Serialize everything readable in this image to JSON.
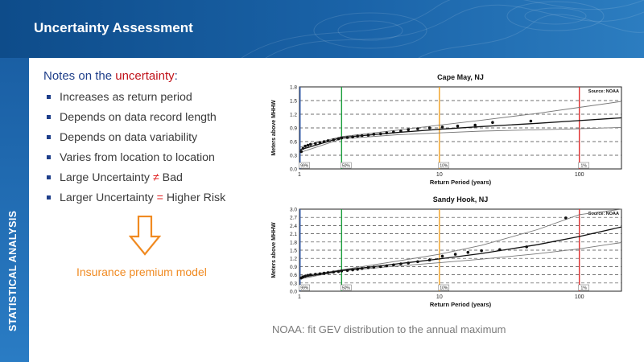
{
  "title": "Uncertainty Assessment",
  "sidebar": {
    "label": "STATISTICAL ANALYSIS"
  },
  "notes": {
    "heading_prefix": "Notes on the ",
    "heading_highlight": "uncertainty",
    "heading_suffix": ":",
    "bullets": [
      "Increases as return period",
      "Depends on data record length",
      "Depends on data variability",
      "Varies from location to location"
    ],
    "bullet5": {
      "left": "Large Uncertainty ",
      "symbol": "≠",
      "right": " Bad"
    },
    "bullet6": {
      "left": "Larger Uncertainty ",
      "symbol": "=",
      "right": " Higher Risk"
    }
  },
  "model_label": "Insurance premium model",
  "caption": "NOAA: fit GEV distribution to the annual maximum",
  "colors": {
    "accent_red": "#c0121a",
    "arrow_orange": "#f08a21",
    "heading_blue": "#1f3f8a"
  },
  "chart_data": [
    {
      "type": "scatter",
      "title": "Cape May, NJ",
      "source": "Source: NOAA",
      "xlabel": "Return Period (years)",
      "ylabel": "Meters above MHHW",
      "x_scale": "log",
      "xlim": [
        1,
        200
      ],
      "ylim": [
        0,
        1.8
      ],
      "yticks": [
        "0.0",
        "0.3",
        "0.6",
        "0.9",
        "1.2",
        "1.5",
        "1.8"
      ],
      "xticks": [
        1,
        10,
        100
      ],
      "vlines": [
        {
          "x": 1.01,
          "label": "99%",
          "color": "#2e57a8"
        },
        {
          "x": 2,
          "label": "50%",
          "color": "#1b9e3c"
        },
        {
          "x": 10,
          "label": "10%",
          "color": "#f0a020"
        },
        {
          "x": 100,
          "label": "1%",
          "color": "#e03030"
        }
      ],
      "fit": {
        "x": [
          1.01,
          2,
          5,
          10,
          20,
          50,
          100,
          200
        ],
        "y": [
          0.42,
          0.69,
          0.8,
          0.87,
          0.93,
          1.0,
          1.06,
          1.12
        ]
      },
      "ci_upper": {
        "x": [
          1.01,
          2,
          5,
          10,
          20,
          50,
          100,
          200
        ],
        "y": [
          0.48,
          0.71,
          0.85,
          0.96,
          1.07,
          1.22,
          1.35,
          1.48
        ]
      },
      "ci_lower": {
        "x": [
          1.01,
          2,
          5,
          10,
          20,
          50,
          100,
          200
        ],
        "y": [
          0.36,
          0.66,
          0.75,
          0.79,
          0.83,
          0.86,
          0.88,
          0.91
        ]
      },
      "points": {
        "x": [
          1.03,
          1.06,
          1.1,
          1.15,
          1.2,
          1.3,
          1.4,
          1.5,
          1.6,
          1.75,
          1.9,
          2.0,
          2.2,
          2.4,
          2.6,
          2.8,
          3.1,
          3.4,
          3.8,
          4.2,
          4.7,
          5.3,
          6.0,
          7.0,
          8.5,
          10.5,
          13.5,
          18,
          24,
          45
        ],
        "y": [
          0.38,
          0.45,
          0.5,
          0.52,
          0.54,
          0.56,
          0.58,
          0.6,
          0.62,
          0.64,
          0.66,
          0.68,
          0.69,
          0.7,
          0.72,
          0.73,
          0.74,
          0.76,
          0.77,
          0.79,
          0.81,
          0.83,
          0.86,
          0.88,
          0.9,
          0.92,
          0.94,
          0.96,
          1.02,
          1.05
        ]
      }
    },
    {
      "type": "scatter",
      "title": "Sandy Hook, NJ",
      "source": "Source: NOAA",
      "xlabel": "Return Period (years)",
      "ylabel": "Meters above MHHW",
      "x_scale": "log",
      "xlim": [
        1,
        200
      ],
      "ylim": [
        0,
        3.0
      ],
      "yticks": [
        "0.0",
        "0.3",
        "0.6",
        "0.9",
        "1.2",
        "1.5",
        "1.8",
        "2.1",
        "2.4",
        "2.7",
        "3.0"
      ],
      "xticks": [
        1,
        10,
        100
      ],
      "vlines": [
        {
          "x": 1.01,
          "label": "99%",
          "color": "#2e57a8"
        },
        {
          "x": 2,
          "label": "50%",
          "color": "#1b9e3c"
        },
        {
          "x": 10,
          "label": "10%",
          "color": "#f0a020"
        },
        {
          "x": 100,
          "label": "1%",
          "color": "#e03030"
        }
      ],
      "fit": {
        "x": [
          1.01,
          2,
          5,
          10,
          20,
          50,
          100,
          200
        ],
        "y": [
          0.5,
          0.76,
          1.0,
          1.18,
          1.38,
          1.7,
          2.0,
          2.35
        ]
      },
      "ci_upper": {
        "x": [
          1.01,
          2,
          5,
          10,
          20,
          50,
          100,
          200
        ],
        "y": [
          0.55,
          0.78,
          1.1,
          1.35,
          1.68,
          2.25,
          2.8,
          3.0
        ]
      },
      "ci_lower": {
        "x": [
          1.01,
          2,
          5,
          10,
          20,
          50,
          100,
          200
        ],
        "y": [
          0.45,
          0.74,
          0.92,
          1.04,
          1.17,
          1.37,
          1.55,
          1.78
        ]
      },
      "points": {
        "x": [
          1.03,
          1.06,
          1.1,
          1.15,
          1.2,
          1.3,
          1.4,
          1.5,
          1.6,
          1.75,
          1.9,
          2.0,
          2.2,
          2.4,
          2.6,
          2.8,
          3.1,
          3.4,
          3.8,
          4.2,
          4.7,
          5.3,
          6.0,
          7.0,
          8.5,
          10.5,
          13,
          16,
          20,
          27,
          42,
          80
        ],
        "y": [
          0.48,
          0.52,
          0.55,
          0.58,
          0.6,
          0.62,
          0.64,
          0.66,
          0.68,
          0.7,
          0.72,
          0.74,
          0.76,
          0.78,
          0.8,
          0.83,
          0.86,
          0.88,
          0.9,
          0.93,
          0.96,
          1.0,
          1.03,
          1.08,
          1.14,
          1.28,
          1.35,
          1.42,
          1.48,
          1.52,
          1.62,
          2.68
        ]
      }
    }
  ]
}
